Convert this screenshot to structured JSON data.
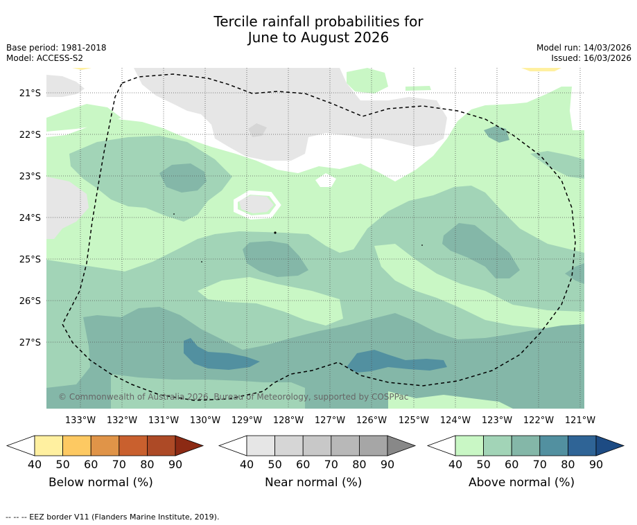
{
  "title_line1": "Tercile rainfall probabilities for",
  "title_line2": "June to August 2026",
  "base_period": "Base period: 1981-2018",
  "model": "Model: ACCESS-S2",
  "model_run": "Model run: 14/03/2026",
  "issued": "Issued: 16/03/2026",
  "copyright": "© Commonwealth of Australia 2026, Bureau of Meteorology, supported by COSPPac",
  "lat_labels": [
    "21°S",
    "22°S",
    "23°S",
    "24°S",
    "25°S",
    "26°S",
    "27°S"
  ],
  "lon_labels": [
    "133°W",
    "132°W",
    "131°W",
    "130°W",
    "129°W",
    "128°W",
    "127°W",
    "126°W",
    "125°W",
    "124°W",
    "123°W",
    "122°W",
    "121°W"
  ],
  "legends": [
    {
      "label": "Below normal (%)",
      "ticks": [
        "40",
        "50",
        "60",
        "70",
        "80",
        "90"
      ],
      "colors": [
        "#ffffff",
        "#fff0a0",
        "#fdc962",
        "#e09448",
        "#c9602e",
        "#ad4a26",
        "#8c2a14"
      ]
    },
    {
      "label": "Near normal (%)",
      "ticks": [
        "40",
        "50",
        "60",
        "70",
        "80",
        "90"
      ],
      "colors": [
        "#ffffff",
        "#e6e6e6",
        "#d6d6d6",
        "#c8c8c8",
        "#b8b8b8",
        "#a6a6a6",
        "#888888"
      ]
    },
    {
      "label": "Above normal (%)",
      "ticks": [
        "40",
        "50",
        "60",
        "70",
        "80",
        "90"
      ],
      "colors": [
        "#ffffff",
        "#c9f7c5",
        "#a2d4b7",
        "#84b7a8",
        "#5290a0",
        "#2f6496",
        "#1d4b83"
      ]
    }
  ],
  "footnote": "--  --  -- EEZ border V11 (Flanders Marine Institute, 2019)."
}
